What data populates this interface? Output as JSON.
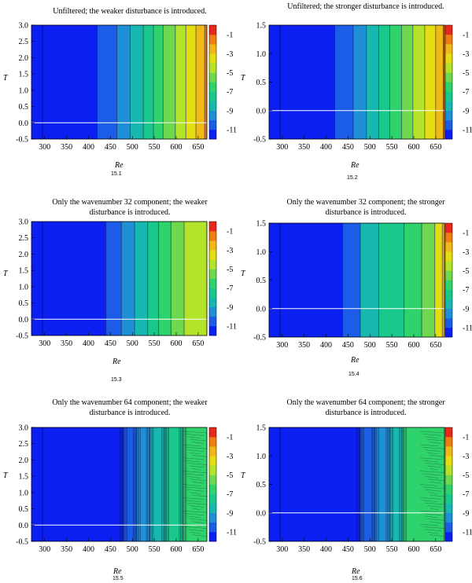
{
  "colorbar": {
    "ticks": [
      "-1",
      "-3",
      "-5",
      "-7",
      "-9",
      "-11"
    ],
    "colors": [
      "#0a1ff0",
      "#1b5de6",
      "#1f8fd6",
      "#18b8b0",
      "#18c98b",
      "#2fd36b",
      "#6ed94e",
      "#b3e42a",
      "#e3dd12",
      "#f0b818",
      "#ef7d12",
      "#e8281a"
    ]
  },
  "chart_data": [
    {
      "id": "15.1",
      "type": "heatmap",
      "title": "Unfiltered; the weaker disturbance is introduced.",
      "xlabel": "Re",
      "ylabel": "T",
      "xlim": [
        270,
        670
      ],
      "ylim": [
        -0.5,
        3.0
      ],
      "xticks": [
        "300",
        "350",
        "400",
        "450",
        "500",
        "550",
        "600",
        "650"
      ],
      "yticks": [
        "3.0",
        "2.5",
        "2.0",
        "1.5",
        "1.0",
        "0.5",
        "0.0",
        "-0.5"
      ],
      "bands": [
        [
          270,
          420,
          0
        ],
        [
          420,
          465,
          1
        ],
        [
          465,
          495,
          2
        ],
        [
          495,
          525,
          3
        ],
        [
          525,
          548,
          4
        ],
        [
          548,
          570,
          5
        ],
        [
          570,
          598,
          6
        ],
        [
          598,
          622,
          7
        ],
        [
          622,
          645,
          8
        ],
        [
          645,
          665,
          9
        ],
        [
          665,
          670,
          10
        ]
      ],
      "caption": "15.1"
    },
    {
      "id": "15.2",
      "type": "heatmap",
      "title": "Unfiltered; the stronger disturbance is introduced.",
      "xlabel": "Re",
      "ylabel": "T",
      "xlim": [
        270,
        670
      ],
      "ylim": [
        -0.5,
        1.5
      ],
      "xticks": [
        "300",
        "350",
        "400",
        "450",
        "500",
        "550",
        "600",
        "650"
      ],
      "yticks": [
        "1.5",
        "1.0",
        "0.5",
        "0.0",
        "-0.5"
      ],
      "bands": [
        [
          270,
          420,
          0
        ],
        [
          420,
          462,
          1
        ],
        [
          462,
          492,
          2
        ],
        [
          492,
          520,
          3
        ],
        [
          520,
          545,
          4
        ],
        [
          545,
          572,
          5
        ],
        [
          572,
          598,
          6
        ],
        [
          598,
          625,
          7
        ],
        [
          625,
          650,
          8
        ],
        [
          650,
          667,
          9
        ],
        [
          667,
          670,
          10
        ]
      ],
      "caption": "15.2"
    },
    {
      "id": "15.3",
      "type": "heatmap",
      "title": "Only the wavenumber 32 component; the weaker disturbance is introduced.",
      "xlabel": "Re",
      "ylabel": "T",
      "xlim": [
        270,
        670
      ],
      "ylim": [
        -0.5,
        3.0
      ],
      "xticks": [
        "300",
        "350",
        "400",
        "450",
        "500",
        "550",
        "600",
        "650"
      ],
      "yticks": [
        "3.0",
        "2.5",
        "2.0",
        "1.5",
        "1.0",
        "0.5",
        "0.0",
        "-0.5"
      ],
      "bands": [
        [
          270,
          440,
          0
        ],
        [
          440,
          475,
          1
        ],
        [
          475,
          505,
          2
        ],
        [
          505,
          535,
          3
        ],
        [
          535,
          560,
          4
        ],
        [
          560,
          588,
          5
        ],
        [
          588,
          618,
          6
        ],
        [
          618,
          670,
          7
        ]
      ],
      "caption": "15.3"
    },
    {
      "id": "15.4",
      "type": "heatmap",
      "title": "Only the wavenumber 32 component; the stronger disturbance is introduced.",
      "xlabel": "Re",
      "ylabel": "T",
      "xlim": [
        270,
        670
      ],
      "ylim": [
        -0.5,
        1.5
      ],
      "xticks": [
        "300",
        "350",
        "400",
        "450",
        "500",
        "550",
        "600",
        "650"
      ],
      "yticks": [
        "1.5",
        "1.0",
        "0.5",
        "0.0",
        "-0.5"
      ],
      "bands": [
        [
          270,
          438,
          0
        ],
        [
          438,
          478,
          1
        ],
        [
          478,
          520,
          3
        ],
        [
          520,
          578,
          4
        ],
        [
          578,
          618,
          5
        ],
        [
          618,
          648,
          6
        ],
        [
          648,
          665,
          8
        ],
        [
          665,
          670,
          9
        ]
      ],
      "caption": "15.4"
    },
    {
      "id": "15.5",
      "type": "heatmap",
      "title": "Only the wavenumber 64 component; the weaker disturbance is introduced.",
      "xlabel": "Re",
      "ylabel": "T",
      "xlim": [
        270,
        670
      ],
      "ylim": [
        -0.5,
        3.0
      ],
      "xticks": [
        "300",
        "350",
        "400",
        "450",
        "500",
        "550",
        "600",
        "650"
      ],
      "yticks": [
        "3.0",
        "2.5",
        "2.0",
        "1.5",
        "1.0",
        "0.5",
        "0.0",
        "-0.5"
      ],
      "bands": [
        [
          270,
          480,
          0
        ],
        [
          480,
          510,
          1
        ],
        [
          510,
          540,
          2
        ],
        [
          540,
          575,
          3
        ],
        [
          575,
          615,
          4
        ],
        [
          615,
          670,
          5
        ]
      ],
      "caption": "15.5"
    },
    {
      "id": "15.6",
      "type": "heatmap",
      "title": "Only the wavenumber 64 component; the stronger disturbance is introduced.",
      "xlabel": "Re",
      "ylabel": "T",
      "xlim": [
        270,
        670
      ],
      "ylim": [
        -0.5,
        1.5
      ],
      "xticks": [
        "300",
        "350",
        "400",
        "450",
        "500",
        "550",
        "600",
        "650"
      ],
      "yticks": [
        "1.5",
        "1.0",
        "0.5",
        "0.0",
        "-0.5"
      ],
      "bands": [
        [
          270,
          478,
          0
        ],
        [
          478,
          512,
          1
        ],
        [
          512,
          545,
          2
        ],
        [
          545,
          575,
          3
        ],
        [
          575,
          670,
          5
        ]
      ],
      "caption": "15.6"
    }
  ]
}
